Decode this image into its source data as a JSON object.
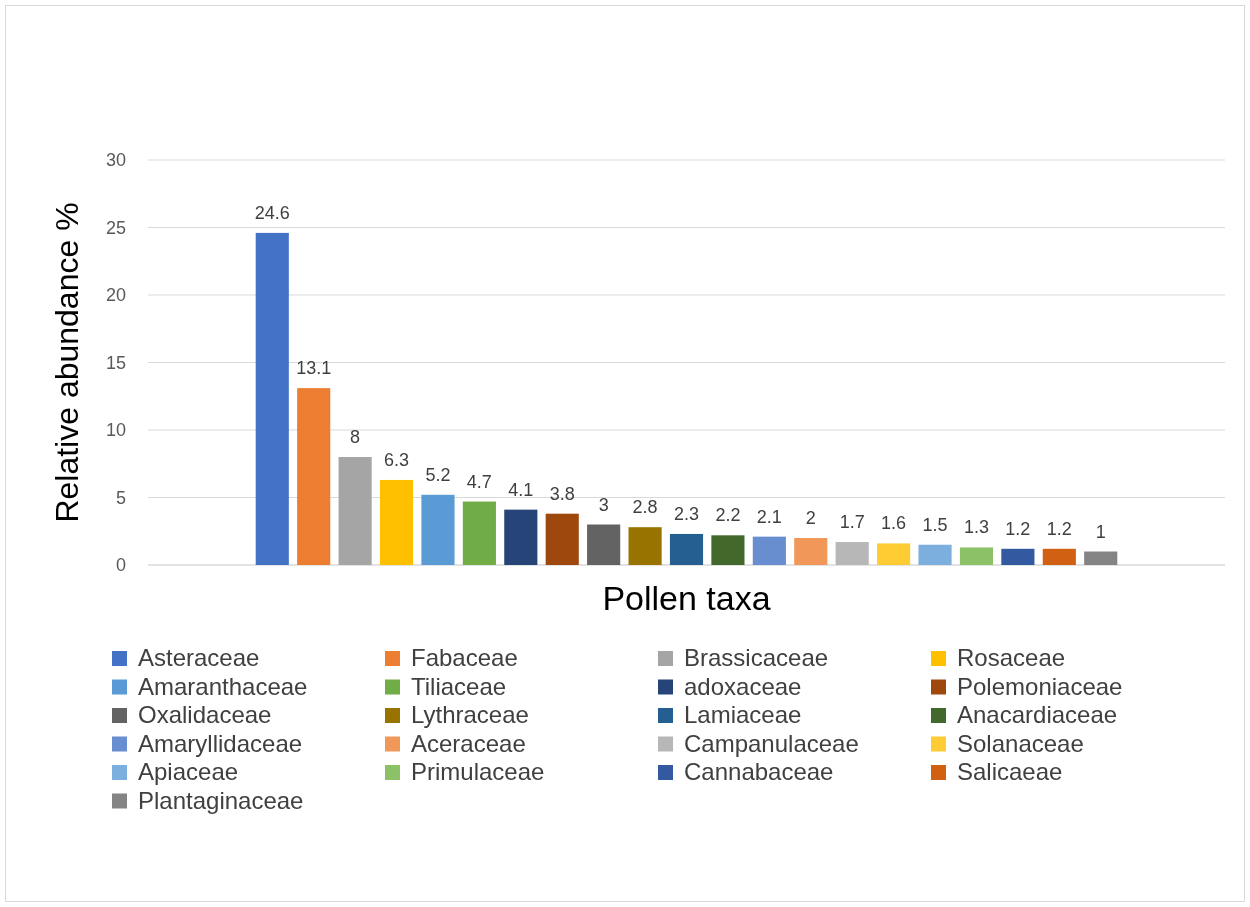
{
  "chart_data": {
    "type": "bar",
    "xlabel": "Pollen taxa",
    "ylabel": "Relative abundance %",
    "categories": [
      null
    ],
    "ylim": [
      0,
      30
    ],
    "yticks": [
      0,
      5,
      10,
      15,
      20,
      25,
      30
    ],
    "grid": "y",
    "legend": "bottom",
    "data_labels": true,
    "series": [
      {
        "name": "Asteraceae",
        "color": "#4472c4",
        "values": [
          24.6
        ]
      },
      {
        "name": "Fabaceae",
        "color": "#ed7d31",
        "values": [
          13.1
        ]
      },
      {
        "name": "Brassicaceae",
        "color": "#a5a5a5",
        "values": [
          8
        ]
      },
      {
        "name": "Rosaceae",
        "color": "#ffc000",
        "values": [
          6.3
        ]
      },
      {
        "name": "Amaranthaceae",
        "color": "#5b9bd5",
        "values": [
          5.2
        ]
      },
      {
        "name": "Tiliaceae",
        "color": "#70ad47",
        "values": [
          4.7
        ]
      },
      {
        "name": "adoxaceae",
        "color": "#264478",
        "values": [
          4.1
        ]
      },
      {
        "name": "Polemoniaceae",
        "color": "#9e480e",
        "values": [
          3.8
        ]
      },
      {
        "name": "Oxalidaceae",
        "color": "#636363",
        "values": [
          3
        ]
      },
      {
        "name": "Lythraceae",
        "color": "#997300",
        "values": [
          2.8
        ]
      },
      {
        "name": "Lamiaceae",
        "color": "#255e91",
        "values": [
          2.3
        ]
      },
      {
        "name": "Anacardiaceae",
        "color": "#43682b",
        "values": [
          2.2
        ]
      },
      {
        "name": "Amaryllidaceae",
        "color": "#698ed0",
        "values": [
          2.1
        ]
      },
      {
        "name": "Aceraceae",
        "color": "#f1975a",
        "values": [
          2
        ]
      },
      {
        "name": "Campanulaceae",
        "color": "#b7b7b7",
        "values": [
          1.7
        ]
      },
      {
        "name": "Solanaceae",
        "color": "#ffcd33",
        "values": [
          1.6
        ]
      },
      {
        "name": "Apiaceae",
        "color": "#7cafdd",
        "values": [
          1.5
        ]
      },
      {
        "name": "Primulaceae",
        "color": "#8cc168",
        "values": [
          1.3
        ]
      },
      {
        "name": "Cannabaceae",
        "color": "#335aa1",
        "values": [
          1.2
        ]
      },
      {
        "name": "Salicaeae",
        "color": "#d26012",
        "values": [
          1.2
        ]
      },
      {
        "name": "Plantaginaceae",
        "color": "#848484",
        "values": [
          1
        ]
      }
    ]
  }
}
